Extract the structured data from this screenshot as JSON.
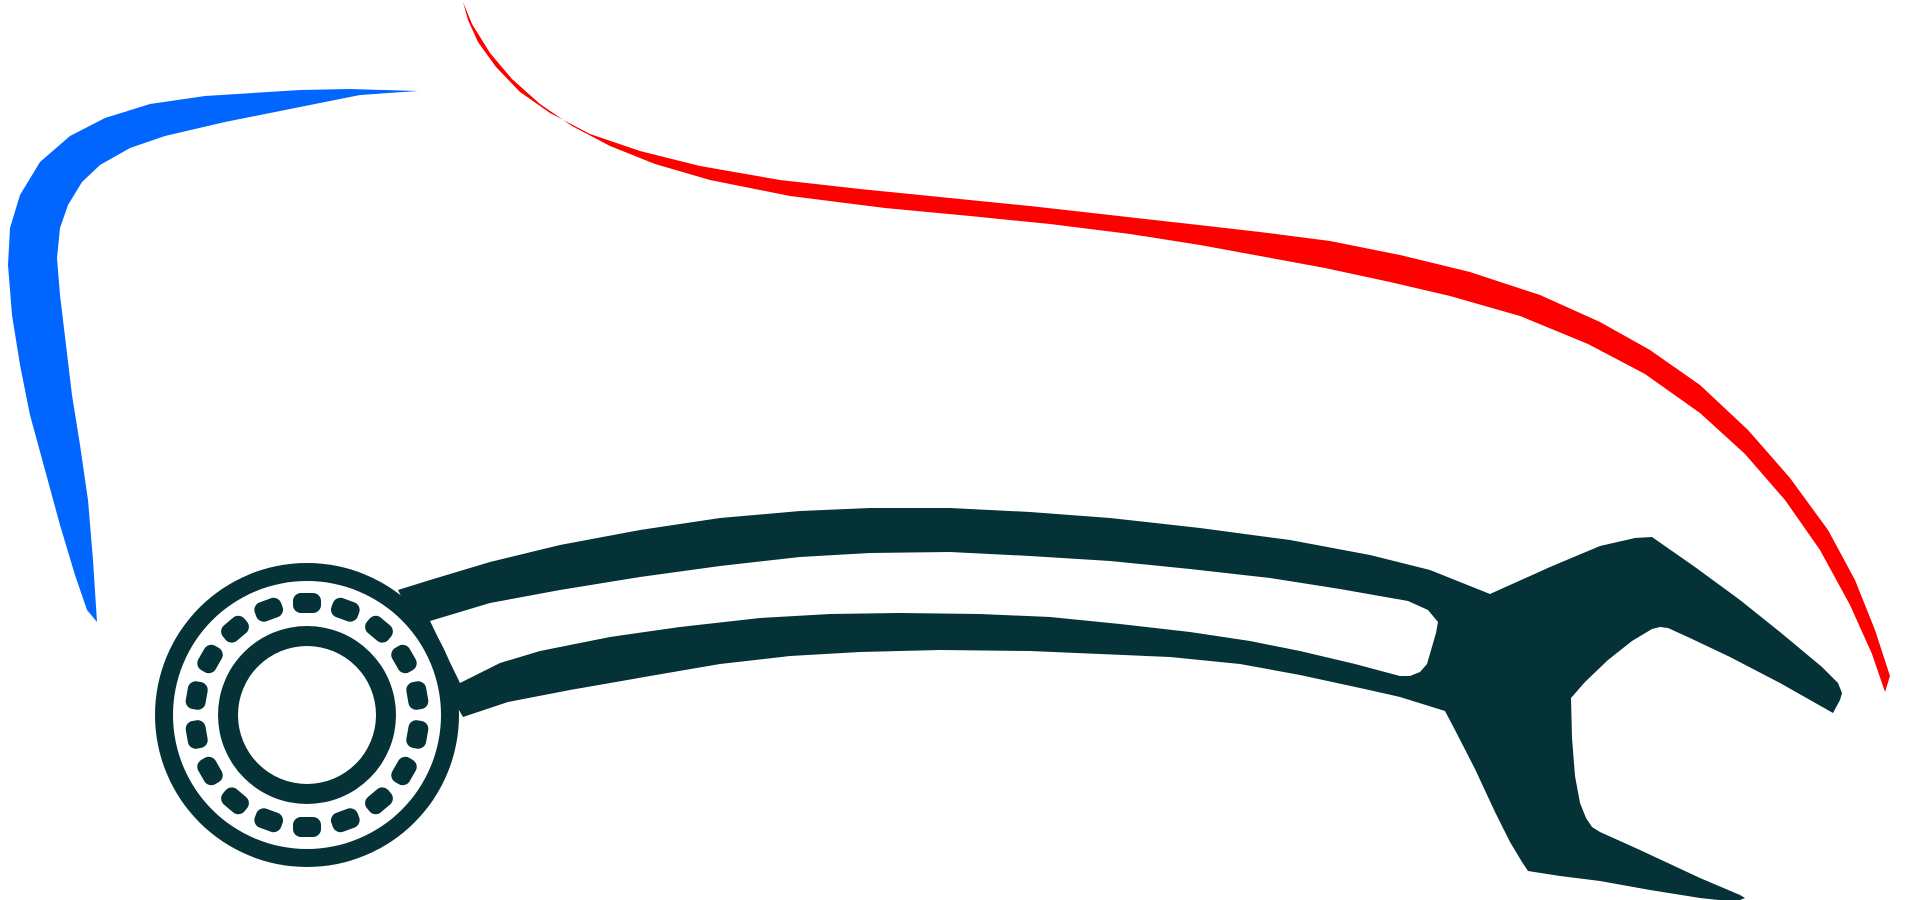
{
  "logo": {
    "colors": {
      "background": "#ffffff",
      "swoosh_left": "#0066ff",
      "swoosh_right": "#ff0000",
      "wrench": "#043236"
    },
    "elements": [
      "blue-swoosh",
      "red-swoosh",
      "wrench",
      "bearing"
    ]
  }
}
